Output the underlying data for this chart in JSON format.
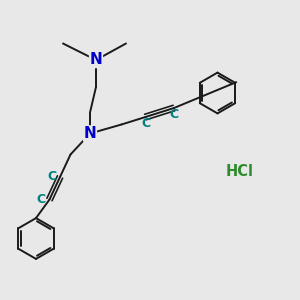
{
  "background_color": "#e8e8e8",
  "bond_color": "#1a1a1a",
  "nitrogen_color": "#0000cc",
  "alkyne_c_color": "#008080",
  "hcl_color": "#2d8c2d",
  "bond_lw": 1.4,
  "figsize": [
    3.0,
    3.0
  ],
  "dpi": 100,
  "xlim": [
    0,
    10
  ],
  "ylim": [
    0,
    10
  ]
}
